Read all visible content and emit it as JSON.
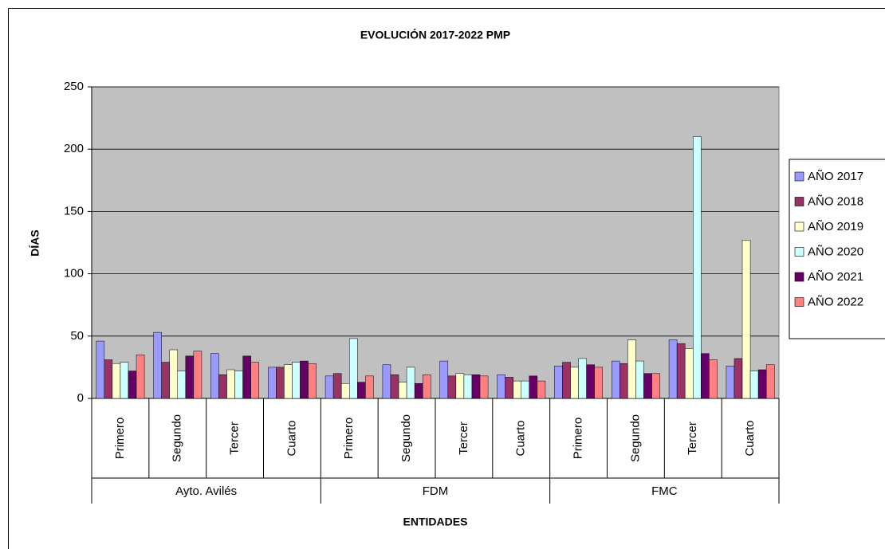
{
  "chart_data": {
    "type": "bar",
    "title": "EVOLUCIÓN 2017-2022 PMP",
    "y_label": "DÍAS",
    "x_label": "ENTIDADES",
    "category_groups": [
      {
        "name": "Ayto. Avilés",
        "categories": [
          "Primero",
          "Segundo",
          "Tercer",
          "Cuarto"
        ]
      },
      {
        "name": "FDM",
        "categories": [
          "Primero",
          "Segundo",
          "Tercer",
          "Cuarto"
        ]
      },
      {
        "name": "FMC",
        "categories": [
          "Primero",
          "Segundo",
          "Tercer",
          "Cuarto"
        ]
      }
    ],
    "series": [
      {
        "name": "AÑO 2017",
        "color": "#9999ff",
        "values": [
          46,
          53,
          36,
          25,
          18,
          27,
          30,
          19,
          26,
          30,
          47,
          26
        ]
      },
      {
        "name": "AÑO 2018",
        "color": "#993366",
        "values": [
          31,
          29,
          19,
          25,
          20,
          19,
          18,
          17,
          29,
          28,
          44,
          32
        ]
      },
      {
        "name": "AÑO 2019",
        "color": "#ffffcc",
        "values": [
          28,
          39,
          23,
          27,
          12,
          13,
          20,
          14,
          25,
          47,
          40,
          127
        ]
      },
      {
        "name": "AÑO 2020",
        "color": "#ccffff",
        "values": [
          29,
          22,
          22,
          29,
          48,
          25,
          19,
          14,
          32,
          30,
          210,
          22
        ]
      },
      {
        "name": "AÑO 2021",
        "color": "#660066",
        "values": [
          22,
          34,
          34,
          30,
          13,
          12,
          19,
          18,
          27,
          20,
          36,
          23
        ]
      },
      {
        "name": "AÑO 2022",
        "color": "#ff8080",
        "values": [
          35,
          38,
          29,
          28,
          18,
          19,
          18,
          14,
          25,
          20,
          31,
          27
        ]
      }
    ],
    "ylim": [
      0,
      250
    ],
    "yticks": [
      0,
      50,
      100,
      150,
      200,
      250
    ],
    "grid": true,
    "plot_background": "#c0c0c0",
    "legend": "right"
  }
}
